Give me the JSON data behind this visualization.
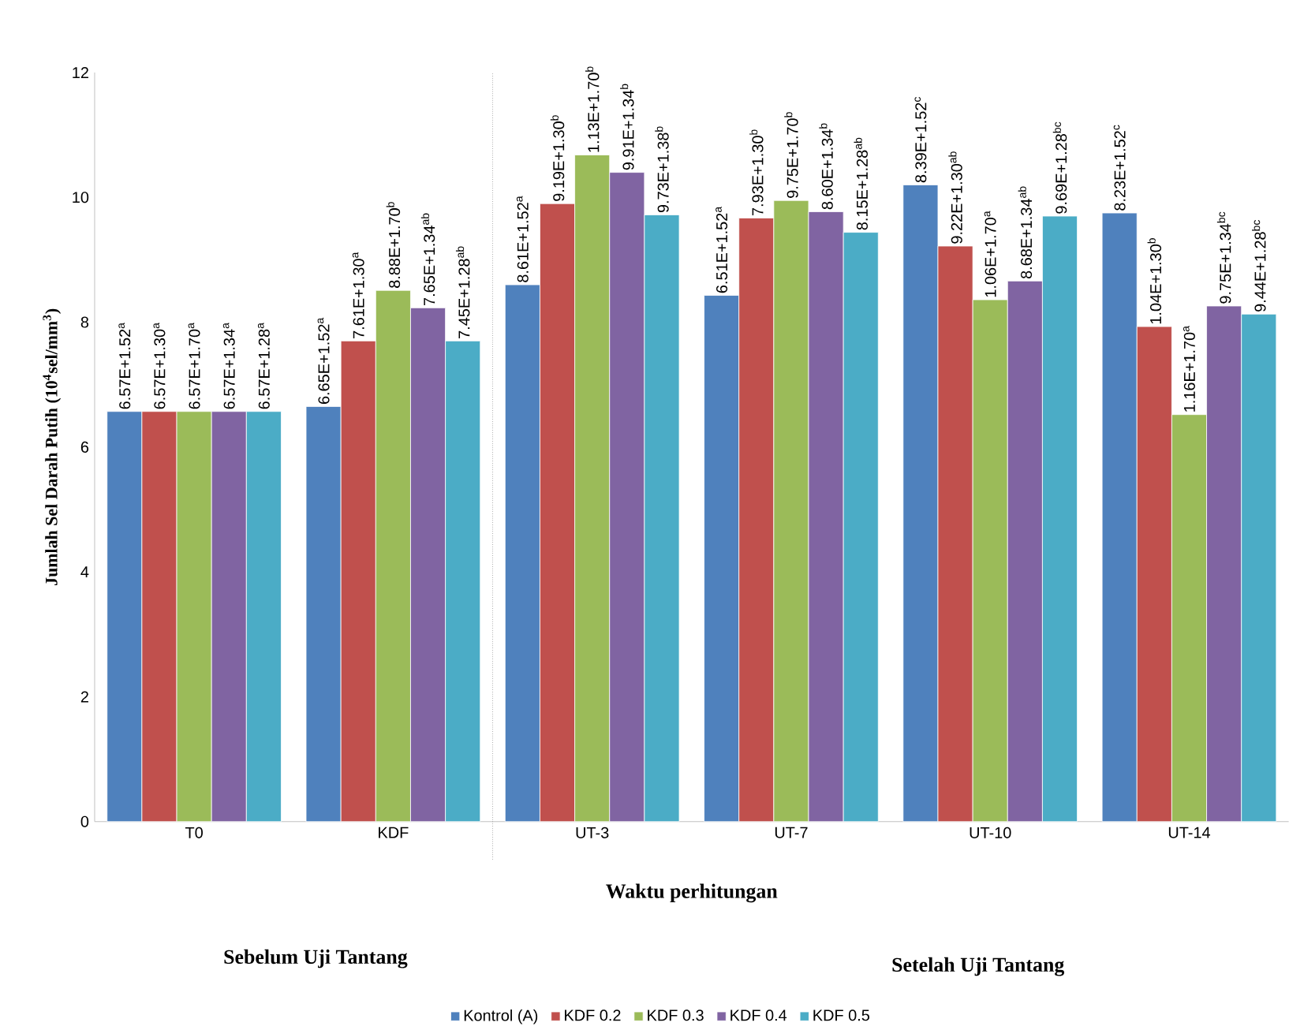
{
  "chart_data": {
    "type": "bar",
    "xlabel": "Waktu perhitungan",
    "ylabel": "Jumlah Sel  Darah Putih  (10$^{4}$sel/mm$^{3}$)",
    "categories": [
      "T0",
      "KDF",
      "UT-3",
      "UT-7",
      "UT-10",
      "UT-14"
    ],
    "series": [
      {
        "name": "Kontrol (A)",
        "color": "#4f81bd",
        "values": [
          6.57,
          6.65,
          8.6,
          8.43,
          10.2,
          9.75
        ]
      },
      {
        "name": "KDF 0.2",
        "color": "#c0504d",
        "values": [
          6.57,
          7.7,
          9.9,
          9.67,
          9.22,
          7.93
        ]
      },
      {
        "name": "KDF 0.3",
        "color": "#9bbb59",
        "values": [
          6.57,
          8.51,
          10.68,
          9.95,
          8.36,
          6.52
        ]
      },
      {
        "name": "KDF 0.4",
        "color": "#8064a2",
        "values": [
          6.57,
          8.23,
          10.4,
          9.77,
          8.66,
          8.26
        ]
      },
      {
        "name": "KDF 0.5",
        "color": "#4bacc6",
        "values": [
          6.57,
          7.7,
          9.72,
          9.44,
          9.7,
          8.13
        ]
      }
    ],
    "ylim": [
      0,
      12
    ],
    "yticks": [
      0,
      2,
      4,
      6,
      8,
      10,
      12
    ],
    "legend": "bottom",
    "annotations": [
      "6.57E+1.52$^{a}$",
      "6.57E+1.30$^{a}$",
      "6.57E+1.70$^{a}$",
      "6.57E+1.34$^{a}$",
      "6.57E+1.28$^{a}$",
      "6.65E+1.52$^{a}$",
      "7.61E+1.30$^{a}$",
      "8.88E+1.70$^{b}$",
      "7.65E+1.34$^{ab}$",
      "7.45E+1.28$^{ab}$",
      "8.61E+1.52$^{a}$",
      "9.19E+1.30$^{b}$",
      "1.13E+1.70$^{b}$",
      "9.91E+1.34$^{b}$",
      "9.73E+1.38$^{b}$",
      "6.51E+1.52$^{a}$",
      "7.93E+1.30$^{b}$",
      "9.75E+1.70$^{b}$",
      "8.60E+1.34$^{b}$",
      "8.15E+1.28$^{ab}$",
      "8.39E+1.52$^{c}$",
      "9.22E+1.30$^{ab}$",
      "1.06E+1.70$^{a}$",
      "8.68E+1.34$^{ab}$",
      "9.69E+1.28$^{bc}$",
      "8.23E+1.52$^{c}$",
      "1.04E+1.30$^{b}$",
      "1.16E+1.70$^{a}$",
      "9.75E+1.34$^{bc}$",
      "9.44E+1.28$^{bc}$",
      "Sebelum Uji Tantang",
      "Setelah Uji Tantang"
    ]
  }
}
